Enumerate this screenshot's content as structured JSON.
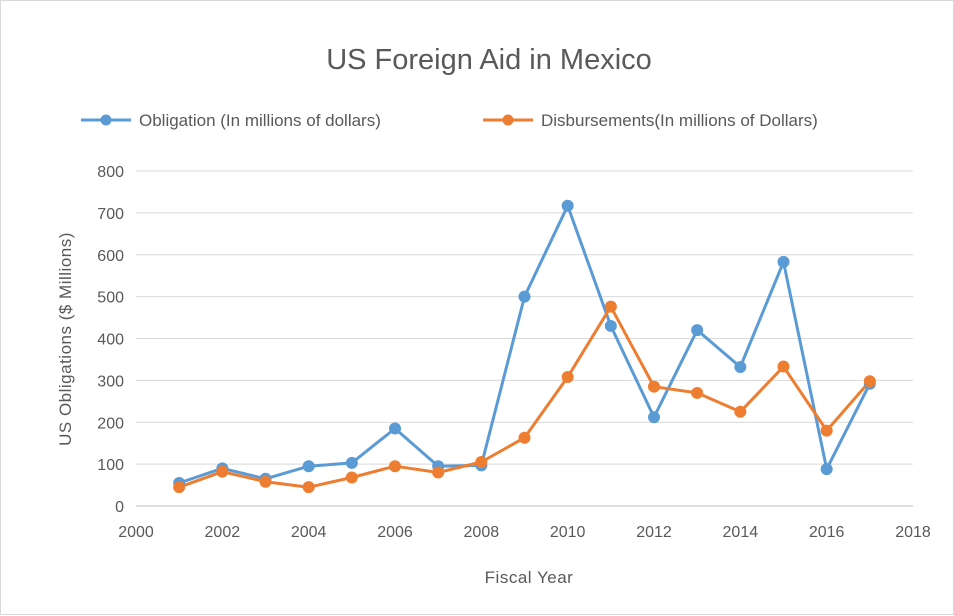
{
  "chart_data": {
    "type": "line",
    "title": "US Foreign Aid in Mexico",
    "xlabel": "Fiscal Year",
    "ylabel": "US Obligations ($ Millions)",
    "xlim": [
      2000,
      2018
    ],
    "ylim": [
      0,
      800
    ],
    "x_ticks": [
      "2000",
      "2002",
      "2004",
      "2006",
      "2008",
      "2010",
      "2012",
      "2014",
      "2016",
      "2018"
    ],
    "y_ticks": [
      "0",
      "100",
      "200",
      "300",
      "400",
      "500",
      "600",
      "700",
      "800"
    ],
    "grid": "horizontal",
    "legend_position": "top",
    "x": [
      2001,
      2002,
      2003,
      2004,
      2005,
      2006,
      2007,
      2008,
      2009,
      2010,
      2011,
      2012,
      2013,
      2014,
      2015,
      2016,
      2017
    ],
    "series": [
      {
        "name": "Obligation (In millions of dollars)",
        "color": "#5b9bd5",
        "values": [
          55,
          90,
          65,
          95,
          103,
          185,
          95,
          97,
          500,
          717,
          430,
          212,
          420,
          332,
          583,
          88,
          292
        ]
      },
      {
        "name": "Disbursements(In millions of Dollars)",
        "color": "#ed7d31",
        "values": [
          45,
          82,
          58,
          45,
          68,
          95,
          80,
          105,
          163,
          308,
          476,
          285,
          270,
          225,
          333,
          180,
          298
        ]
      }
    ]
  }
}
